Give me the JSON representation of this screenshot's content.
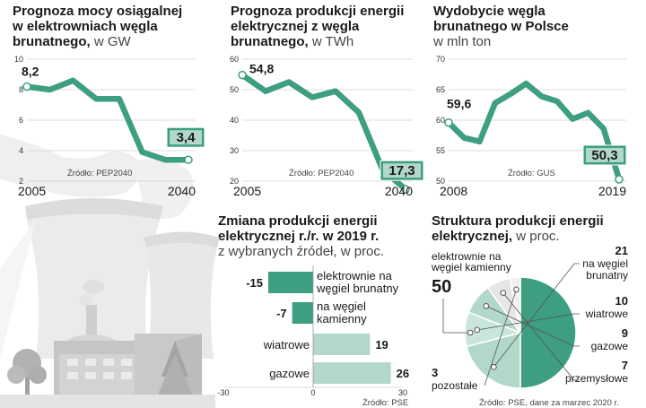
{
  "colors": {
    "accent": "#3d9e82",
    "light": "#b2d8c9",
    "grid": "#d3d3d3",
    "pale": "#e8e8e8"
  },
  "chart_data": [
    {
      "type": "line",
      "title_bold": "Prognoza mocy osiągalnej w elektrowniach węgla brunatnego,",
      "title_unit": "w GW",
      "title_lines": [
        "Prognoza mocy osiągalnej",
        "w elektrowniach węgla",
        "brunatnego,"
      ],
      "x": [
        2005,
        2010,
        2015,
        2020,
        2025,
        2030,
        2035,
        2040
      ],
      "values": [
        8.2,
        8.0,
        8.6,
        7.4,
        7.4,
        3.9,
        3.4,
        3.4
      ],
      "start_label": "8,2",
      "end_label": "3,4",
      "yticks": [
        "10",
        "8",
        "6",
        "4",
        "2"
      ],
      "ylim": [
        2,
        10
      ],
      "xticks": [
        "2005",
        "2040"
      ],
      "source": "Źródło: PEP2040"
    },
    {
      "type": "line",
      "title_lines": [
        "Prognoza produkcji energii",
        "elektrycznej z węgla",
        "brunatnego,"
      ],
      "title_unit": "w TWh",
      "x": [
        2005,
        2010,
        2015,
        2020,
        2025,
        2030,
        2035,
        2040
      ],
      "values": [
        54.8,
        49.5,
        52.5,
        47.5,
        49.5,
        42.5,
        24.0,
        17.3
      ],
      "start_label": "54,8",
      "end_label": "17,3",
      "yticks": [
        "60",
        "50",
        "40",
        "30",
        "20"
      ],
      "ylim": [
        20,
        60
      ],
      "xticks": [
        "2005",
        "2040"
      ],
      "source": "Źródło: PEP2040"
    },
    {
      "type": "line",
      "title_lines": [
        "Wydobycie węgla",
        "brunatnego w Polsce"
      ],
      "title_unit": "w mln ton",
      "x": [
        2008,
        2009,
        2010,
        2011,
        2012,
        2013,
        2014,
        2015,
        2016,
        2017,
        2018,
        2019
      ],
      "values": [
        59.6,
        57.1,
        56.5,
        62.8,
        64.3,
        66.0,
        63.9,
        63.1,
        60.2,
        61.2,
        58.6,
        50.3
      ],
      "start_label": "59,6",
      "end_label": "50,3",
      "yticks": [
        "70",
        "65",
        "60",
        "55",
        "50"
      ],
      "ylim": [
        50,
        70
      ],
      "xticks": [
        "2008",
        "2019"
      ],
      "source": "Źródło: GUS"
    },
    {
      "type": "bar",
      "title_lines": [
        "Zmiana produkcji energii",
        "elektrycznej r./r. w 2019 r."
      ],
      "subtitle": "z wybranych źródeł, w proc.",
      "categories": [
        [
          "elektrownie na",
          "węgiel brunatny"
        ],
        [
          "na węgiel",
          "kamienny"
        ],
        [
          "wiatrowe"
        ],
        [
          "gazowe"
        ]
      ],
      "values": [
        -15,
        -7,
        19,
        26
      ],
      "value_labels": [
        "-15",
        "-7",
        "19",
        "26"
      ],
      "xticks": [
        "-30",
        "0",
        "30"
      ],
      "xlim": [
        -30,
        30
      ],
      "source": "Źródło: PSE"
    },
    {
      "type": "pie",
      "title_lines": [
        "Struktura produkcji energii",
        "elektrycznej,"
      ],
      "title_unit": "w proc.",
      "slices": [
        {
          "label": [
            "elektrownie na",
            "węgiel kamienny"
          ],
          "value": 50,
          "value_label": "50"
        },
        {
          "label": [
            "na węgiel",
            "brunatny"
          ],
          "value": 21,
          "value_label": "21"
        },
        {
          "label": [
            "wiatrowe"
          ],
          "value": 10,
          "value_label": "10"
        },
        {
          "label": [
            "gazowe"
          ],
          "value": 9,
          "value_label": "9"
        },
        {
          "label": [
            "przemysłowe"
          ],
          "value": 7,
          "value_label": "7"
        },
        {
          "label": [
            "pozostałe"
          ],
          "value": 3,
          "value_label": "3"
        }
      ],
      "source": "Źródło: PSE, dane za marzec 2020 r."
    }
  ]
}
